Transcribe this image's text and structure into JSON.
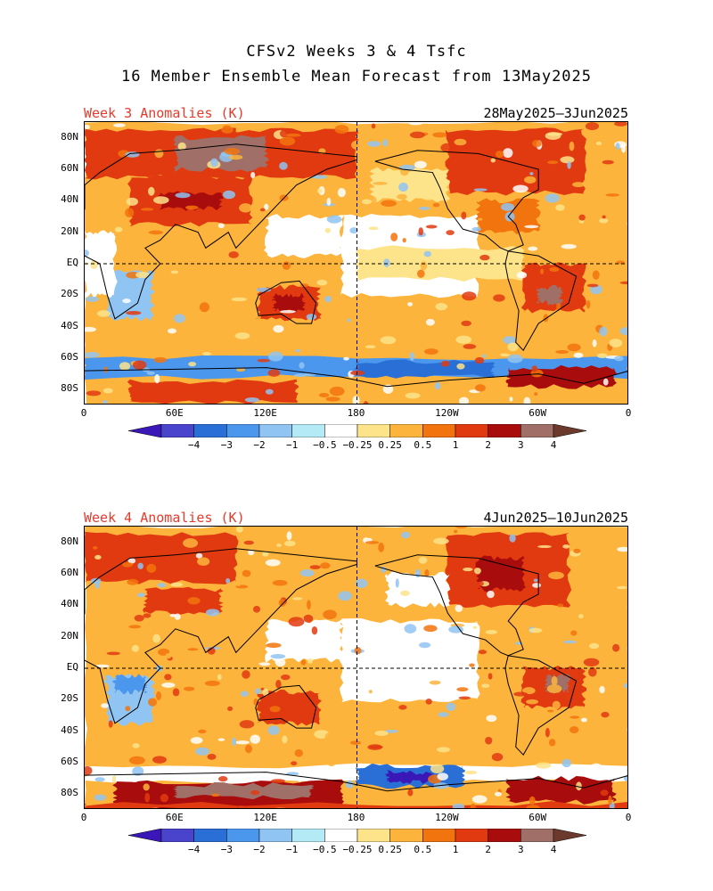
{
  "figure": {
    "title_line1": "CFSv2 Weeks 3 & 4 Tsfc",
    "title_line2": "16 Member Ensemble Mean Forecast from 13May2025"
  },
  "panels": [
    {
      "label": "Week 3 Anomalies (K)",
      "date_range": "28May2025—3Jun2025"
    },
    {
      "label": "Week 4 Anomalies (K)",
      "date_range": "4Jun2025—10Jun2025"
    }
  ],
  "lat_labels": [
    "80N",
    "60N",
    "40N",
    "20N",
    "EQ",
    "20S",
    "40S",
    "60S",
    "80S"
  ],
  "lon_labels": [
    "0",
    "60E",
    "120E",
    "180",
    "120W",
    "60W",
    "0"
  ],
  "colorbar": {
    "labels": [
      "−4",
      "−3",
      "−2",
      "−1",
      "−0.5",
      "−0.25",
      "0.25",
      "0.5",
      "1",
      "2",
      "3",
      "4"
    ],
    "colors": [
      "#3a18b8",
      "#4a44cc",
      "#2a6fd6",
      "#4c97ee",
      "#90c4f2",
      "#b4eaf6",
      "#ffffff",
      "#fde38a",
      "#fcb43c",
      "#f2740e",
      "#e23a10",
      "#a80c0c",
      "#a07068",
      "#6b3a2c"
    ]
  }
}
